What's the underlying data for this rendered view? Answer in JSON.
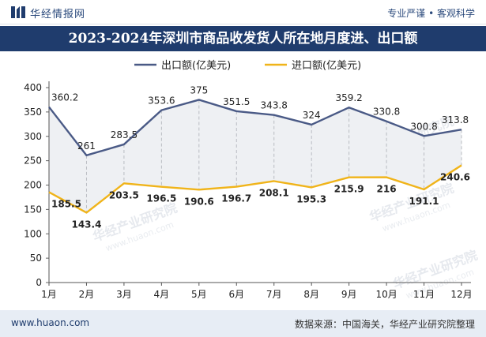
{
  "header": {
    "brand": "华经情报网",
    "tagline": "专业严谨 • 客观科学"
  },
  "title": "2023-2024年深圳市商品收发货人所在地月度进、出口额",
  "footer": {
    "website": "www.huaon.com",
    "source": "数据来源：中国海关，华经产业研究院整理"
  },
  "watermark": {
    "text": "华经产业研究院",
    "url": "www.huaon.com"
  },
  "chart_data": {
    "type": "line",
    "categories": [
      "1月",
      "2月",
      "3月",
      "4月",
      "5月",
      "6月",
      "7月",
      "8月",
      "9月",
      "10月",
      "11月",
      "12月"
    ],
    "series": [
      {
        "name": "出口额(亿美元)",
        "color": "#4a5a86",
        "values": [
          360.2,
          261,
          283.5,
          353.6,
          375,
          351.5,
          343.8,
          324,
          359.2,
          330.8,
          300.8,
          313.8
        ]
      },
      {
        "name": "进口额(亿美元)",
        "color": "#f0b41a",
        "values": [
          185.5,
          143.4,
          203.5,
          196.5,
          190.6,
          196.7,
          208.1,
          195.3,
          215.9,
          216,
          191.1,
          240.6
        ]
      }
    ],
    "ylim": [
      0,
      400
    ],
    "yticks": [
      0,
      50,
      100,
      150,
      200,
      250,
      300,
      350,
      400
    ],
    "legend": "top",
    "area_fill_between_series": true,
    "fill_color": "#eef0f3"
  }
}
